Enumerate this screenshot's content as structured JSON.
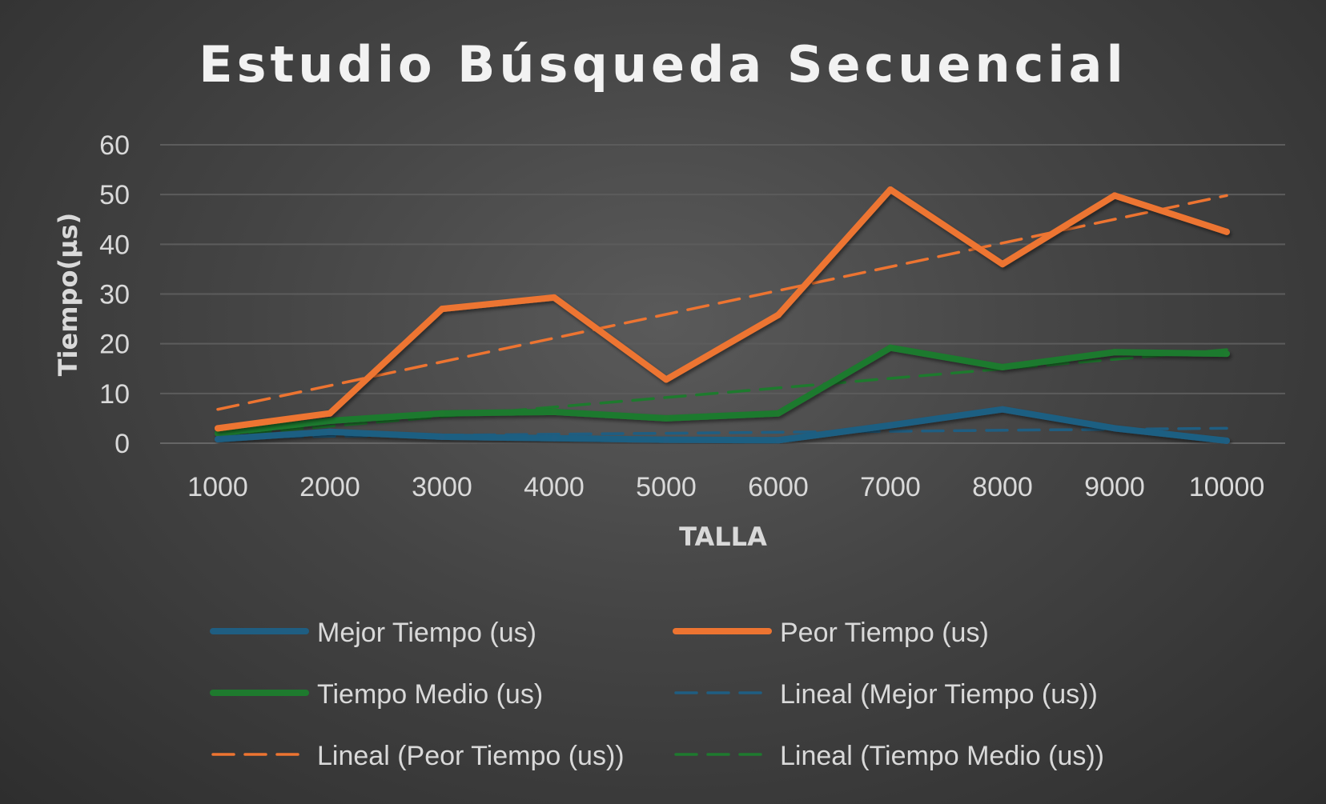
{
  "chart_data": {
    "type": "line",
    "title": "Estudio Búsqueda Secuencial",
    "xlabel": "TALLA",
    "ylabel": "Tiempo(µs)",
    "categories": [
      "1000",
      "2000",
      "3000",
      "4000",
      "5000",
      "6000",
      "7000",
      "8000",
      "9000",
      "10000"
    ],
    "ylim": [
      0,
      60
    ],
    "yticks": [
      "0",
      "10",
      "20",
      "30",
      "40",
      "50",
      "60"
    ],
    "grid": "horizontal",
    "legend_position": "bottom",
    "series": [
      {
        "name": "Mejor Tiempo (us)",
        "color": "#1f5e82",
        "style": "solid",
        "values": [
          0.8,
          2.3,
          1.3,
          1.0,
          0.7,
          0.6,
          3.6,
          6.8,
          3.0,
          0.5
        ]
      },
      {
        "name": "Peor Tiempo (us)",
        "color": "#ed7431",
        "style": "solid",
        "values": [
          3.0,
          6.0,
          27.0,
          29.3,
          12.8,
          25.8,
          51.0,
          36.0,
          49.8,
          42.5
        ]
      },
      {
        "name": "Tiempo Medio (us)",
        "color": "#1e7a2e",
        "style": "solid",
        "values": [
          2.0,
          4.5,
          6.0,
          6.3,
          5.0,
          6.0,
          19.2,
          15.3,
          18.3,
          18.0
        ]
      }
    ],
    "trendlines": [
      {
        "name": "Lineal (Mejor Tiempo (us))",
        "of": "Mejor Tiempo (us)",
        "color": "#1f5e82",
        "style": "dashed",
        "start": 1.2,
        "end": 3.0
      },
      {
        "name": "Lineal (Peor Tiempo (us))",
        "of": "Peor Tiempo (us)",
        "color": "#ed7431",
        "style": "dashed",
        "start": 6.8,
        "end": 49.8
      },
      {
        "name": "Lineal (Tiempo Medio (us))",
        "of": "Tiempo Medio (us)",
        "color": "#1e7a2e",
        "style": "dashed",
        "start": 1.5,
        "end": 18.8
      }
    ],
    "legend": [
      "Mejor Tiempo (us)",
      "Peor Tiempo (us)",
      "Tiempo Medio (us)",
      "Lineal (Mejor Tiempo (us))",
      "Lineal (Peor Tiempo (us))",
      "Lineal (Tiempo Medio (us))"
    ]
  }
}
